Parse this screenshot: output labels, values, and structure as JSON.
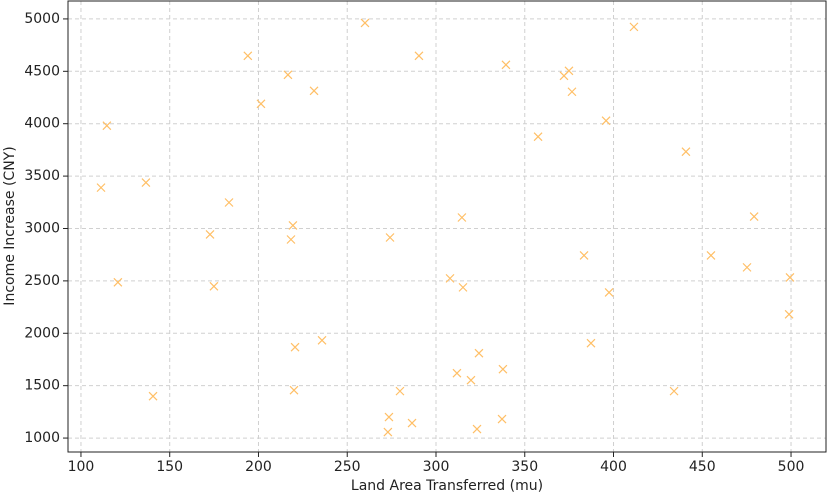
{
  "chart_data": {
    "type": "scatter",
    "x_label": "Land Area Transferred (mu)",
    "y_label": "Income Increase (CNY)",
    "series": [
      {
        "color": "#ffbf66",
        "x": [
          260,
          411.5,
          194,
          290.4,
          216.6,
          339.4,
          374.9,
          372.1,
          231.3,
          376.6,
          201.4,
          114.6,
          395.8,
          357.5,
          440.8,
          111.3,
          136.6,
          183.4,
          314.6,
          479.2,
          219.4,
          172.7,
          218.3,
          274.1,
          383.4,
          454.9,
          475.2,
          307.9,
          499.4,
          120.8,
          174.9,
          315.2,
          397.5,
          498.9,
          387.3,
          220.6,
          235.8,
          324.2,
          337.7,
          311.8,
          319.7,
          220,
          279.7,
          434.1,
          140.6,
          273.5,
          286.5,
          337.2,
          272.9,
          323.1
        ],
        "values": [
          4962,
          4924,
          4648,
          4648,
          4467,
          4562,
          4505,
          4457,
          4314,
          4305,
          4190,
          3981,
          4029,
          3876,
          3733,
          3390,
          3438,
          3248,
          3105,
          3114,
          3029,
          2943,
          2895,
          2914,
          2743,
          2743,
          2629,
          2524,
          2533,
          2486,
          2448,
          2438,
          2390,
          2181,
          1905,
          1867,
          1933,
          1810,
          1657,
          1619,
          1552,
          1457,
          1448,
          1448,
          1400,
          1200,
          1143,
          1181,
          1057,
          1086
        ]
      }
    ],
    "xlim": [
      92.7,
      519.7
    ],
    "xticks": [
      100,
      150,
      200,
      250,
      300,
      350,
      400,
      450,
      500
    ],
    "ylim": [
      867,
      5171
    ],
    "yticks": [
      1000,
      1500,
      2000,
      2500,
      3000,
      3500,
      4000,
      4500,
      5000
    ],
    "grid": true
  }
}
